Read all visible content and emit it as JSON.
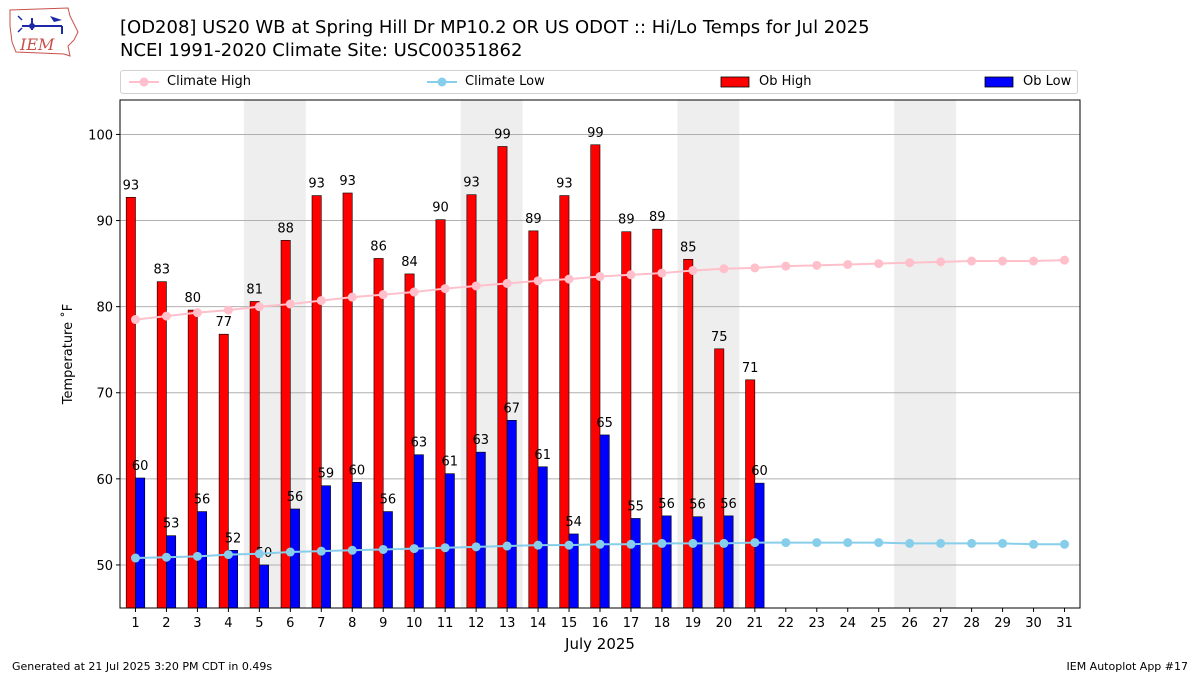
{
  "header": {
    "logo_text": "IEM",
    "title_line1": "[OD208] US20 WB at Spring Hill Dr MP10.2 OR US ODOT :: Hi/Lo Temps for Jul 2025",
    "title_line2": "NCEI 1991-2020 Climate Site: USC00351862"
  },
  "legend": {
    "items": [
      {
        "label": "Climate High",
        "kind": "line",
        "color": "#ffc0cb"
      },
      {
        "label": "Climate Low",
        "kind": "line",
        "color": "#87ceeb"
      },
      {
        "label": "Ob High",
        "kind": "bar",
        "color": "#ff0000"
      },
      {
        "label": "Ob Low",
        "kind": "bar",
        "color": "#0000ff"
      }
    ]
  },
  "footer": {
    "left": "Generated at 21 Jul 2025 3:20 PM CDT in 0.49s",
    "right": "IEM Autoplot App #17"
  },
  "chart_data": {
    "type": "bar",
    "xlabel": "July 2025",
    "ylabel": "Temperature ˚F",
    "ylim": [
      45,
      104
    ],
    "xlim": [
      0.5,
      31.5
    ],
    "yticks": [
      50,
      60,
      70,
      80,
      90,
      100
    ],
    "grid": true,
    "weekend_bands": [
      [
        5,
        6
      ],
      [
        12,
        13
      ],
      [
        19,
        20
      ],
      [
        26,
        27
      ]
    ],
    "days": [
      1,
      2,
      3,
      4,
      5,
      6,
      7,
      8,
      9,
      10,
      11,
      12,
      13,
      14,
      15,
      16,
      17,
      18,
      19,
      20,
      21,
      22,
      23,
      24,
      25,
      26,
      27,
      28,
      29,
      30,
      31
    ],
    "series": [
      {
        "name": "Ob High",
        "kind": "bar",
        "color": "#ff0000",
        "values": [
          92.7,
          82.9,
          79.6,
          76.8,
          80.6,
          87.7,
          92.9,
          93.2,
          85.6,
          83.8,
          90.1,
          93.0,
          98.6,
          88.8,
          92.9,
          98.8,
          88.7,
          89.0,
          85.5,
          75.1,
          71.5
        ],
        "labels": [
          "93",
          "83",
          "80",
          "77",
          "81",
          "88",
          "93",
          "93",
          "86",
          "84",
          "90",
          "93",
          "99",
          "89",
          "93",
          "99",
          "89",
          "89",
          "85",
          "75",
          "71"
        ]
      },
      {
        "name": "Ob Low",
        "kind": "bar",
        "color": "#0000ff",
        "values": [
          60.1,
          53.4,
          56.2,
          51.7,
          50.0,
          56.5,
          59.2,
          59.6,
          56.2,
          62.8,
          60.6,
          63.1,
          66.8,
          61.4,
          53.6,
          65.1,
          55.4,
          55.7,
          55.6,
          55.7,
          59.5
        ],
        "labels": [
          "60",
          "53",
          "56",
          "52",
          "50",
          "56",
          "59",
          "60",
          "56",
          "63",
          "61",
          "63",
          "67",
          "61",
          "54",
          "65",
          "55",
          "56",
          "56",
          "56",
          "60"
        ]
      },
      {
        "name": "Climate High",
        "kind": "line",
        "color": "#ffc0cb",
        "values": [
          78.5,
          78.9,
          79.3,
          79.6,
          80.0,
          80.3,
          80.7,
          81.1,
          81.4,
          81.7,
          82.1,
          82.4,
          82.7,
          83.0,
          83.2,
          83.5,
          83.7,
          83.9,
          84.2,
          84.4,
          84.5,
          84.7,
          84.8,
          84.9,
          85.0,
          85.1,
          85.2,
          85.3,
          85.3,
          85.3,
          85.4
        ]
      },
      {
        "name": "Climate Low",
        "kind": "line",
        "color": "#87ceeb",
        "values": [
          50.8,
          50.9,
          51.0,
          51.2,
          51.3,
          51.5,
          51.6,
          51.7,
          51.8,
          51.9,
          52.0,
          52.1,
          52.2,
          52.3,
          52.3,
          52.4,
          52.4,
          52.5,
          52.5,
          52.5,
          52.6,
          52.6,
          52.6,
          52.6,
          52.6,
          52.5,
          52.5,
          52.5,
          52.5,
          52.4,
          52.4
        ]
      }
    ]
  }
}
